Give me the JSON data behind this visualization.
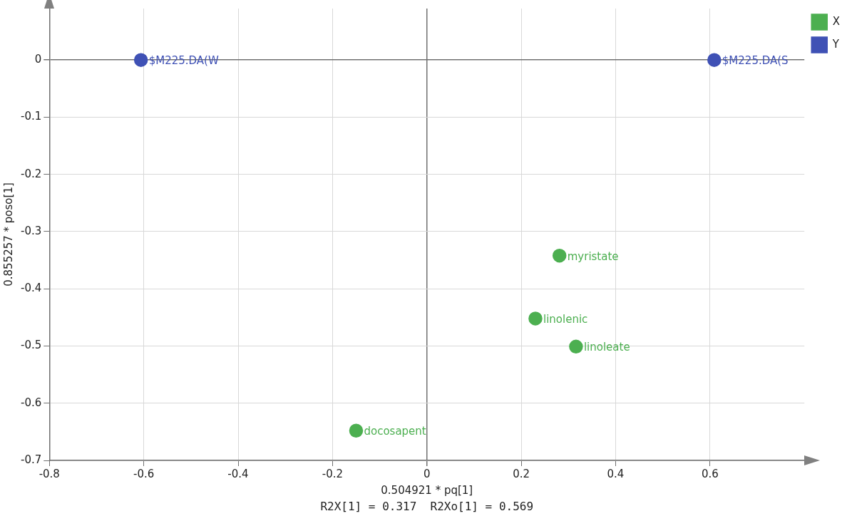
{
  "chart_data": {
    "type": "scatter",
    "xlabel": "0.504921 * pq[1]",
    "ylabel": "0.855257 * poso[1]",
    "series": [
      {
        "name": "X",
        "color": "#4caf50",
        "x": [
          0.281,
          0.23,
          0.316,
          -0.15
        ],
        "values": [
          -0.342,
          -0.452,
          -0.501,
          -0.648
        ]
      },
      {
        "name": "Y",
        "color": "#3f51b5",
        "x": [
          -0.606,
          0.609
        ],
        "values": [
          0,
          0
        ]
      }
    ],
    "annotations": [
      {
        "text": "myristate",
        "x": 0.281,
        "y": -0.342
      },
      {
        "text": "linolenic",
        "x": 0.23,
        "y": -0.452
      },
      {
        "text": "linoleate",
        "x": 0.316,
        "y": -0.501
      },
      {
        "text": "docosapent",
        "x": -0.15,
        "y": -0.648
      },
      {
        "text": "$M225.DA(W",
        "x": -0.606,
        "y": 0
      },
      {
        "text": "$M225.DA(S",
        "x": 0.609,
        "y": 0
      },
      "R2X[1] = 0.317  R2Xo[1] = 0.569"
    ],
    "xlim": [
      -0.8,
      0.8
    ],
    "ylim": [
      -0.7,
      0.09
    ],
    "xticks": [
      -0.8,
      -0.6,
      -0.4,
      -0.2,
      0,
      0.2,
      0.4,
      0.6
    ],
    "yticks": [
      -0.7,
      -0.6,
      -0.5,
      -0.4,
      -0.3,
      -0.2,
      -0.1,
      0
    ],
    "grid": true,
    "legend": "top right",
    "marker": "circle"
  }
}
